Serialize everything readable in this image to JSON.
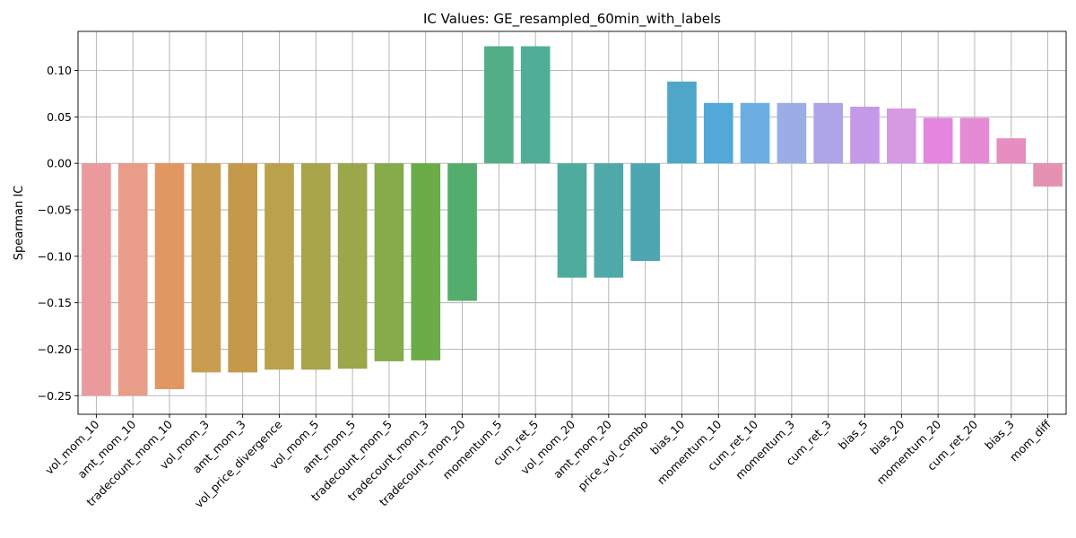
{
  "chart_data": {
    "type": "bar",
    "title": "IC Values: GE_resampled_60min_with_labels",
    "xlabel": "",
    "ylabel": "Spearman IC",
    "ylim": [
      -0.27,
      0.142
    ],
    "yticks": [
      -0.25,
      -0.2,
      -0.15,
      -0.1,
      -0.05,
      0.0,
      0.05,
      0.1
    ],
    "ytick_labels": [
      "−0.25",
      "−0.20",
      "−0.15",
      "−0.10",
      "−0.05",
      "0.00",
      "0.05",
      "0.10"
    ],
    "grid": true,
    "categories": [
      "vol_mom_10",
      "amt_mom_10",
      "tradecount_mom_10",
      "vol_mom_3",
      "amt_mom_3",
      "vol_price_divergence",
      "vol_mom_5",
      "amt_mom_5",
      "tradecount_mom_5",
      "tradecount_mom_3",
      "tradecount_mom_20",
      "momentum_5",
      "cum_ret_5",
      "vol_mom_20",
      "amt_mom_20",
      "price_vol_combo",
      "bias_10",
      "momentum_10",
      "cum_ret_10",
      "momentum_3",
      "cum_ret_3",
      "bias_5",
      "bias_20",
      "momentum_20",
      "cum_ret_20",
      "bias_3",
      "mom_diff"
    ],
    "values": [
      -0.25,
      -0.25,
      -0.243,
      -0.225,
      -0.225,
      -0.222,
      -0.222,
      -0.221,
      -0.213,
      -0.212,
      -0.148,
      0.126,
      0.126,
      -0.123,
      -0.123,
      -0.105,
      0.088,
      0.065,
      0.065,
      0.065,
      0.065,
      0.061,
      0.059,
      0.049,
      0.049,
      0.027,
      -0.025
    ],
    "colors": [
      "#ea9a9c",
      "#e99c87",
      "#e09762",
      "#c99d4f",
      "#c49a4a",
      "#b9a24b",
      "#a8a44a",
      "#9aa74a",
      "#86ab4b",
      "#6cac48",
      "#53ae6e",
      "#51ae86",
      "#50ae97",
      "#4eab9e",
      "#4fa9a8",
      "#4da6b1",
      "#4ea7c9",
      "#52a8d8",
      "#6caee2",
      "#9aaee5",
      "#aea4e8",
      "#c49ae8",
      "#d69ae2",
      "#e486e0",
      "#e58ad4",
      "#e78dbf",
      "#e591b1"
    ]
  }
}
